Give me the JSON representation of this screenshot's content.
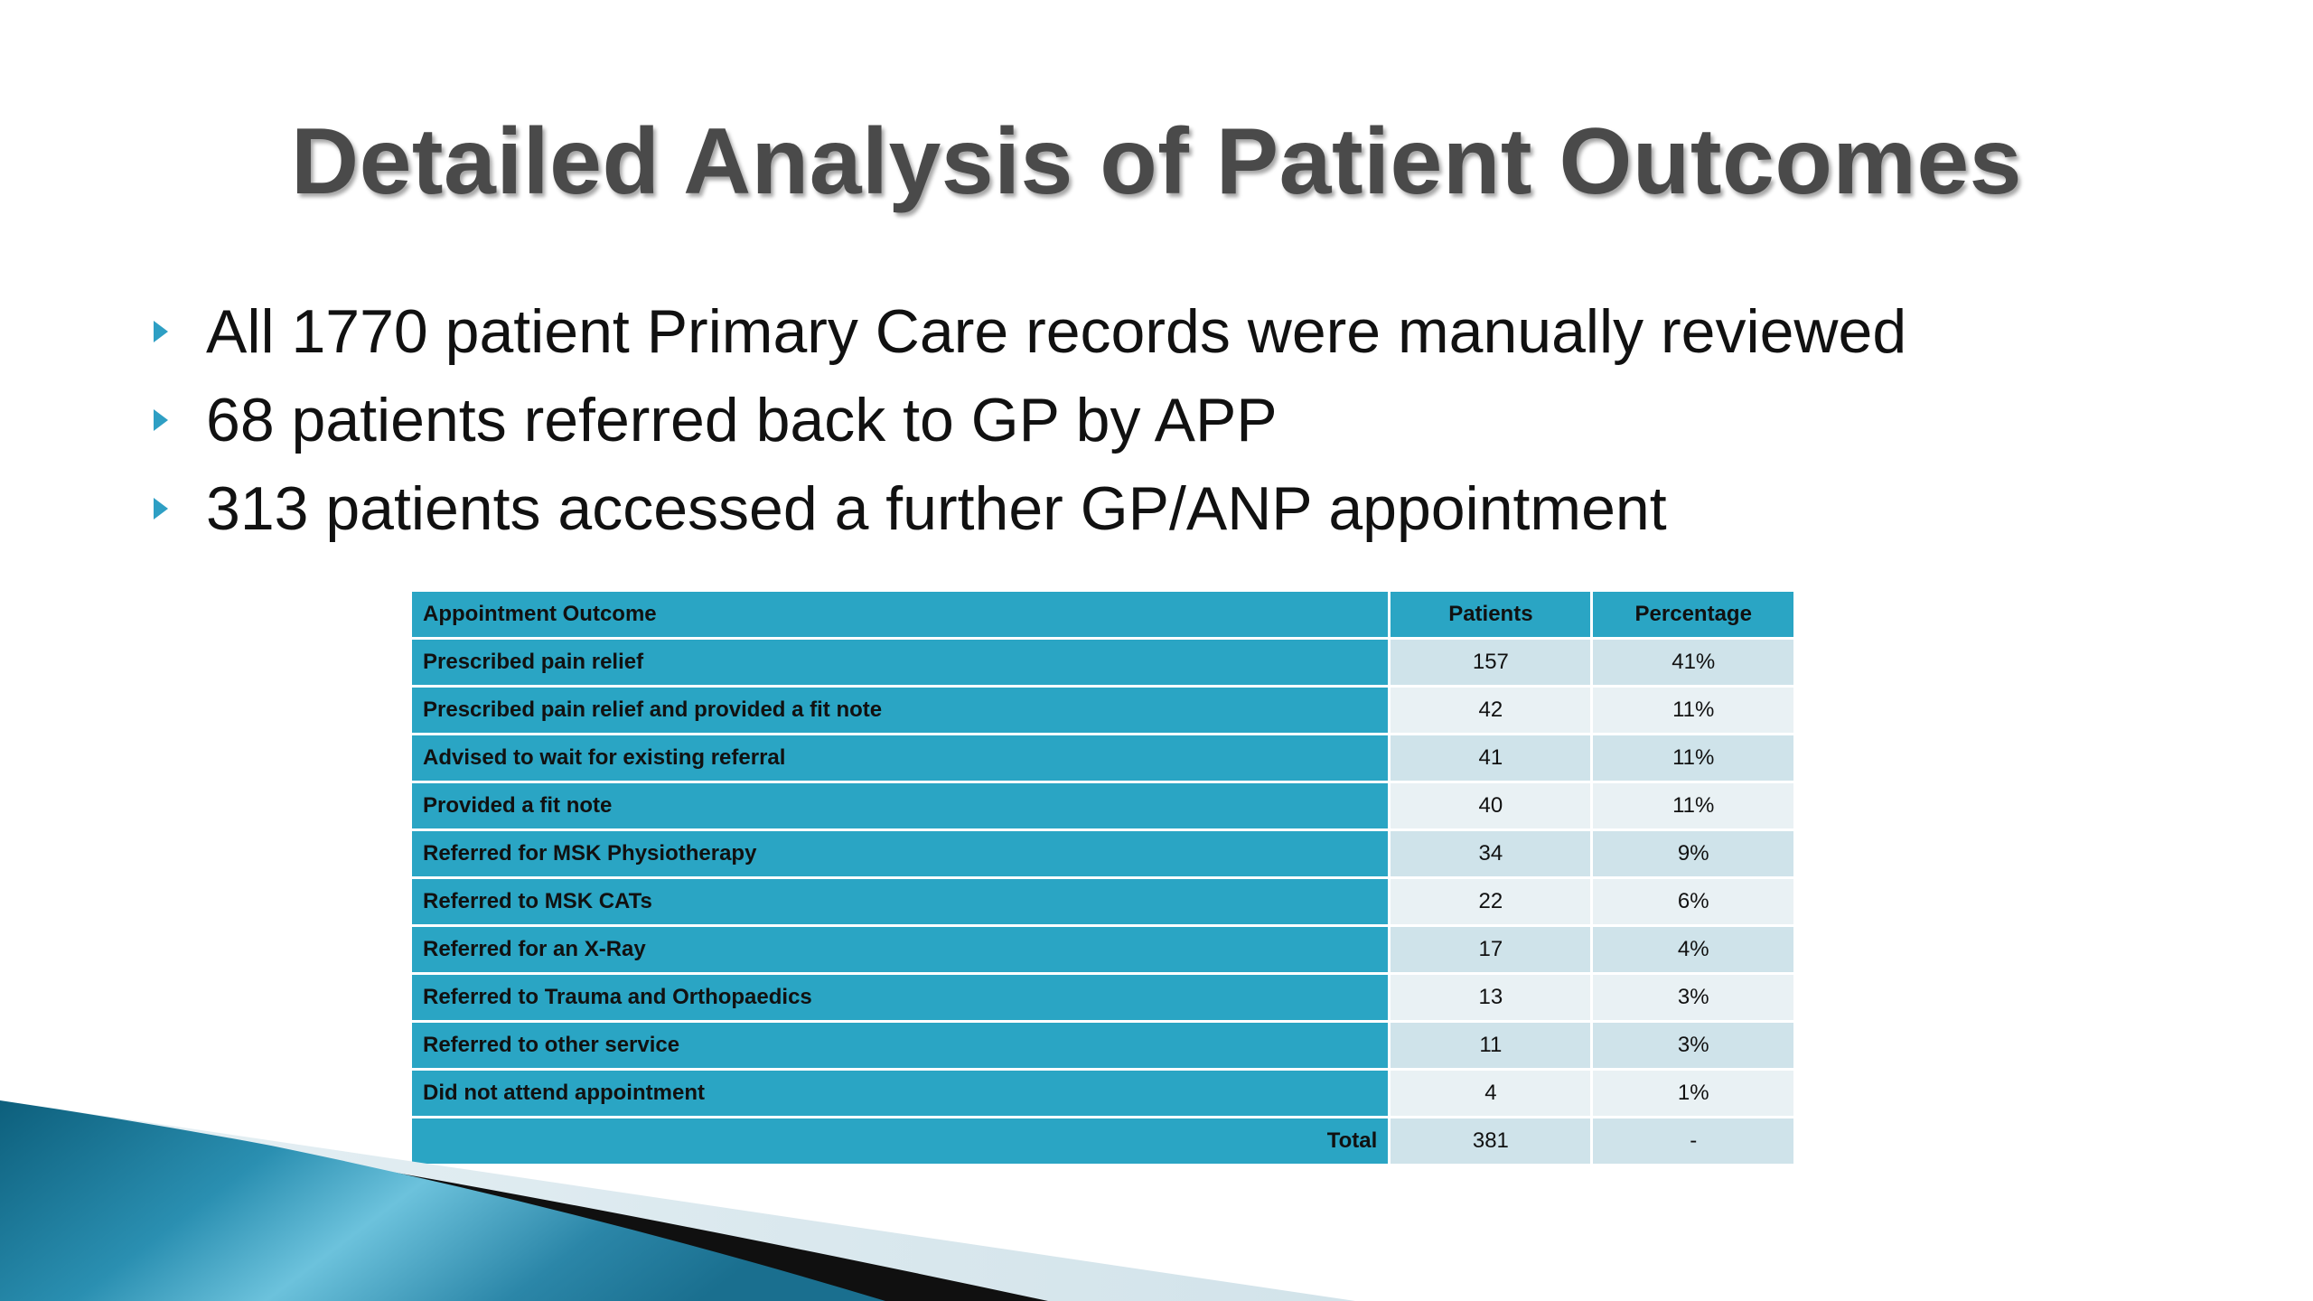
{
  "slide": {
    "title": "Detailed Analysis of Patient Outcomes",
    "bullets": [
      "All 1770 patient Primary Care records were manually reviewed",
      "68 patients referred back to GP by APP",
      "313 patients accessed a further GP/ANP appointment"
    ]
  },
  "table": {
    "headers": {
      "outcome": "Appointment Outcome",
      "patients": "Patients",
      "percentage": "Percentage"
    },
    "rows": [
      {
        "outcome": "Prescribed pain relief",
        "patients": "157",
        "percentage": "41%"
      },
      {
        "outcome": "Prescribed pain relief and provided a fit note",
        "patients": "42",
        "percentage": "11%"
      },
      {
        "outcome": "Advised to wait for existing referral",
        "patients": "41",
        "percentage": "11%"
      },
      {
        "outcome": "Provided a fit note",
        "patients": "40",
        "percentage": "11%"
      },
      {
        "outcome": "Referred for MSK Physiotherapy",
        "patients": "34",
        "percentage": "9%"
      },
      {
        "outcome": "Referred to MSK CATs",
        "patients": "22",
        "percentage": "6%"
      },
      {
        "outcome": "Referred for an X-Ray",
        "patients": "17",
        "percentage": "4%"
      },
      {
        "outcome": "Referred to Trauma and Orthopaedics",
        "patients": "13",
        "percentage": "3%"
      },
      {
        "outcome": "Referred to other service",
        "patients": "11",
        "percentage": "3%"
      },
      {
        "outcome": "Did not attend appointment",
        "patients": "4",
        "percentage": "1%"
      }
    ],
    "total": {
      "label": "Total",
      "patients": "381",
      "percentage": "-"
    }
  },
  "colors": {
    "header_cell": "#2aa5c4",
    "row_band_dark": "#cfe3ea",
    "row_band_light": "#e9f1f4",
    "bullet": "#2e9fc4",
    "title": "#4a4a4a"
  }
}
